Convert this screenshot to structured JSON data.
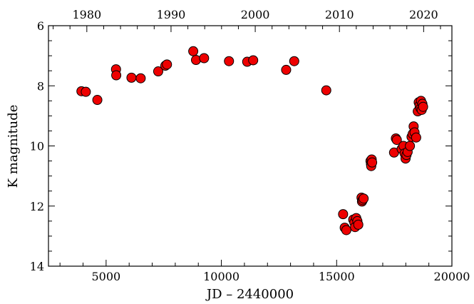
{
  "chart_data": {
    "type": "scatter",
    "title": "",
    "xlabel": "JD – 2440000",
    "ylabel": "K magnitude",
    "xlim": [
      2500,
      20000
    ],
    "ylim": [
      14,
      6
    ],
    "y_inverted": true,
    "grid": false,
    "legend": "none",
    "marker_color": "#ee0000",
    "marker_edge": "#000000",
    "x_ticks_bottom": [
      "5000",
      "10000",
      "15000",
      "20000"
    ],
    "x_ticks_top": [
      "1980",
      "1990",
      "2000",
      "2010",
      "2020"
    ],
    "y_ticks": [
      "6",
      "8",
      "10",
      "12",
      "14"
    ],
    "top_axis_unit": "calendar year",
    "points": [
      {
        "x": 3930,
        "y": 8.18
      },
      {
        "x": 4120,
        "y": 8.2
      },
      {
        "x": 4620,
        "y": 8.47
      },
      {
        "x": 5430,
        "y": 7.45
      },
      {
        "x": 5440,
        "y": 7.65
      },
      {
        "x": 6100,
        "y": 7.73
      },
      {
        "x": 6500,
        "y": 7.75
      },
      {
        "x": 7260,
        "y": 7.52
      },
      {
        "x": 7570,
        "y": 7.33
      },
      {
        "x": 7640,
        "y": 7.29
      },
      {
        "x": 8780,
        "y": 6.85
      },
      {
        "x": 8900,
        "y": 7.14
      },
      {
        "x": 9250,
        "y": 7.08
      },
      {
        "x": 10330,
        "y": 7.18
      },
      {
        "x": 11120,
        "y": 7.2
      },
      {
        "x": 11380,
        "y": 7.15
      },
      {
        "x": 12810,
        "y": 7.47
      },
      {
        "x": 13160,
        "y": 7.18
      },
      {
        "x": 14550,
        "y": 8.15
      },
      {
        "x": 15280,
        "y": 12.27
      },
      {
        "x": 15350,
        "y": 12.72
      },
      {
        "x": 15420,
        "y": 12.8
      },
      {
        "x": 15720,
        "y": 12.45
      },
      {
        "x": 15770,
        "y": 12.55
      },
      {
        "x": 15800,
        "y": 12.7
      },
      {
        "x": 15850,
        "y": 12.4
      },
      {
        "x": 15900,
        "y": 12.5
      },
      {
        "x": 15940,
        "y": 12.62
      },
      {
        "x": 16080,
        "y": 11.72
      },
      {
        "x": 16100,
        "y": 11.85
      },
      {
        "x": 16130,
        "y": 11.8
      },
      {
        "x": 16170,
        "y": 11.75
      },
      {
        "x": 16470,
        "y": 10.5
      },
      {
        "x": 16490,
        "y": 10.6
      },
      {
        "x": 16500,
        "y": 10.67
      },
      {
        "x": 16520,
        "y": 10.45
      },
      {
        "x": 16540,
        "y": 10.55
      },
      {
        "x": 17490,
        "y": 10.22
      },
      {
        "x": 17570,
        "y": 9.75
      },
      {
        "x": 17610,
        "y": 9.8
      },
      {
        "x": 17820,
        "y": 10.1
      },
      {
        "x": 17900,
        "y": 10.0
      },
      {
        "x": 17950,
        "y": 10.25
      },
      {
        "x": 17990,
        "y": 10.42
      },
      {
        "x": 18030,
        "y": 10.3
      },
      {
        "x": 18080,
        "y": 10.2
      },
      {
        "x": 18180,
        "y": 10.0
      },
      {
        "x": 18250,
        "y": 9.7
      },
      {
        "x": 18300,
        "y": 9.6
      },
      {
        "x": 18340,
        "y": 9.35
      },
      {
        "x": 18380,
        "y": 9.55
      },
      {
        "x": 18450,
        "y": 9.72
      },
      {
        "x": 18520,
        "y": 8.85
      },
      {
        "x": 18560,
        "y": 8.55
      },
      {
        "x": 18600,
        "y": 8.65
      },
      {
        "x": 18640,
        "y": 8.75
      },
      {
        "x": 18660,
        "y": 8.5
      },
      {
        "x": 18690,
        "y": 8.8
      },
      {
        "x": 18720,
        "y": 8.6
      },
      {
        "x": 18750,
        "y": 8.7
      }
    ]
  }
}
